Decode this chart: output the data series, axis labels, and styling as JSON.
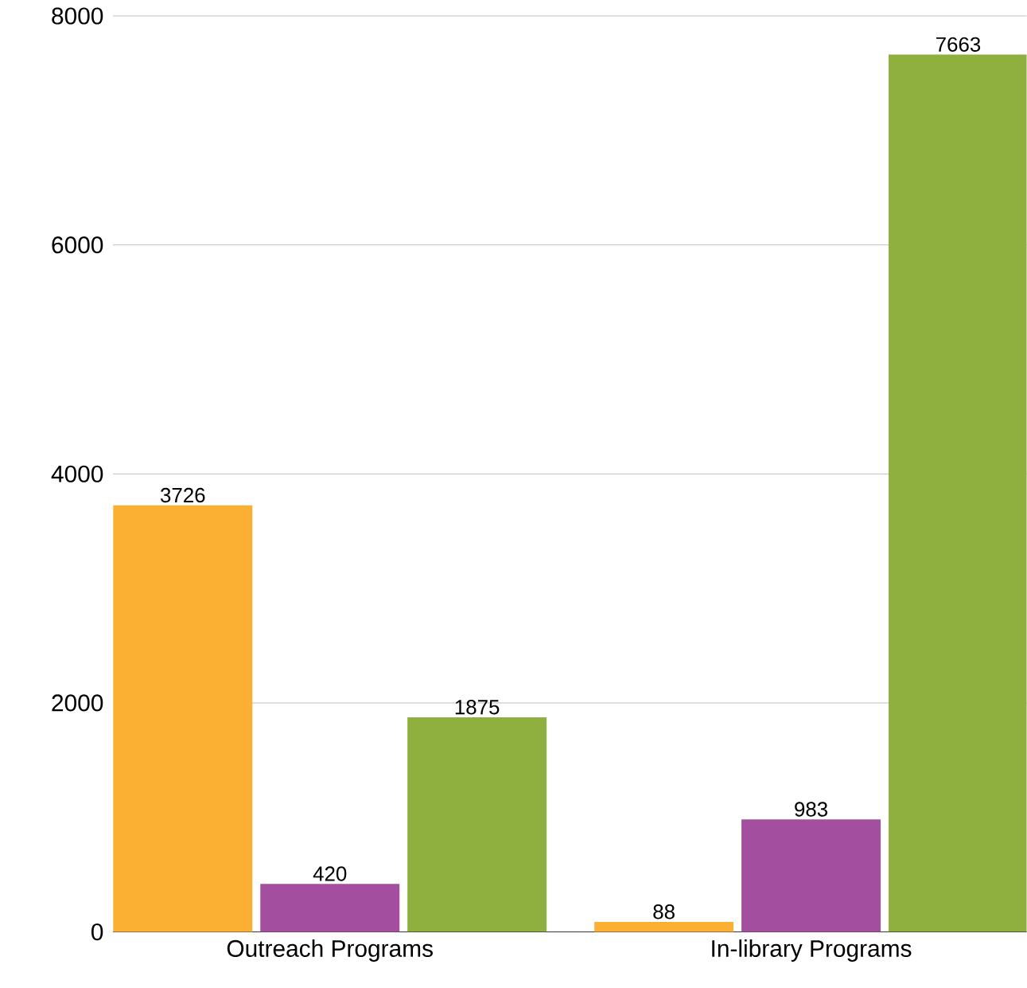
{
  "chart_data": {
    "type": "bar",
    "categories": [
      "Outreach Programs",
      "In-library Programs"
    ],
    "series": [
      {
        "color": "#fbb034",
        "values": [
          3726,
          88
        ]
      },
      {
        "color": "#a34e9e",
        "values": [
          420,
          983
        ]
      },
      {
        "color": "#8fb03e",
        "values": [
          1875,
          7663
        ]
      }
    ],
    "ylim": [
      0,
      8000
    ],
    "yticks": [
      0,
      2000,
      4000,
      6000,
      8000
    ],
    "grid": "y",
    "data_labels": true
  }
}
